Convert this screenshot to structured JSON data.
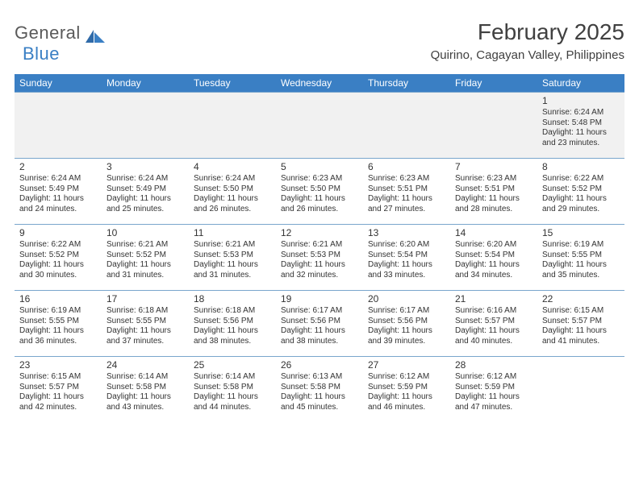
{
  "logo": {
    "text_general": "General",
    "text_blue": "Blue"
  },
  "title": "February 2025",
  "subtitle": "Quirino, Cagayan Valley, Philippines",
  "colors": {
    "header_bg": "#3a7fc4",
    "header_text": "#ffffff",
    "row_border": "#7aa6cc",
    "blank_row_bg": "#f1f1f1",
    "body_text": "#333333",
    "title_text": "#404040",
    "logo_gray": "#5a5a5a",
    "logo_blue": "#3a7fc4"
  },
  "day_names": [
    "Sunday",
    "Monday",
    "Tuesday",
    "Wednesday",
    "Thursday",
    "Friday",
    "Saturday"
  ],
  "weeks": [
    [
      null,
      null,
      null,
      null,
      null,
      null,
      {
        "n": "1",
        "sunrise": "6:24 AM",
        "sunset": "5:48 PM",
        "dl1": "11 hours",
        "dl2": "and 23 minutes."
      }
    ],
    [
      {
        "n": "2",
        "sunrise": "6:24 AM",
        "sunset": "5:49 PM",
        "dl1": "11 hours",
        "dl2": "and 24 minutes."
      },
      {
        "n": "3",
        "sunrise": "6:24 AM",
        "sunset": "5:49 PM",
        "dl1": "11 hours",
        "dl2": "and 25 minutes."
      },
      {
        "n": "4",
        "sunrise": "6:24 AM",
        "sunset": "5:50 PM",
        "dl1": "11 hours",
        "dl2": "and 26 minutes."
      },
      {
        "n": "5",
        "sunrise": "6:23 AM",
        "sunset": "5:50 PM",
        "dl1": "11 hours",
        "dl2": "and 26 minutes."
      },
      {
        "n": "6",
        "sunrise": "6:23 AM",
        "sunset": "5:51 PM",
        "dl1": "11 hours",
        "dl2": "and 27 minutes."
      },
      {
        "n": "7",
        "sunrise": "6:23 AM",
        "sunset": "5:51 PM",
        "dl1": "11 hours",
        "dl2": "and 28 minutes."
      },
      {
        "n": "8",
        "sunrise": "6:22 AM",
        "sunset": "5:52 PM",
        "dl1": "11 hours",
        "dl2": "and 29 minutes."
      }
    ],
    [
      {
        "n": "9",
        "sunrise": "6:22 AM",
        "sunset": "5:52 PM",
        "dl1": "11 hours",
        "dl2": "and 30 minutes."
      },
      {
        "n": "10",
        "sunrise": "6:21 AM",
        "sunset": "5:52 PM",
        "dl1": "11 hours",
        "dl2": "and 31 minutes."
      },
      {
        "n": "11",
        "sunrise": "6:21 AM",
        "sunset": "5:53 PM",
        "dl1": "11 hours",
        "dl2": "and 31 minutes."
      },
      {
        "n": "12",
        "sunrise": "6:21 AM",
        "sunset": "5:53 PM",
        "dl1": "11 hours",
        "dl2": "and 32 minutes."
      },
      {
        "n": "13",
        "sunrise": "6:20 AM",
        "sunset": "5:54 PM",
        "dl1": "11 hours",
        "dl2": "and 33 minutes."
      },
      {
        "n": "14",
        "sunrise": "6:20 AM",
        "sunset": "5:54 PM",
        "dl1": "11 hours",
        "dl2": "and 34 minutes."
      },
      {
        "n": "15",
        "sunrise": "6:19 AM",
        "sunset": "5:55 PM",
        "dl1": "11 hours",
        "dl2": "and 35 minutes."
      }
    ],
    [
      {
        "n": "16",
        "sunrise": "6:19 AM",
        "sunset": "5:55 PM",
        "dl1": "11 hours",
        "dl2": "and 36 minutes."
      },
      {
        "n": "17",
        "sunrise": "6:18 AM",
        "sunset": "5:55 PM",
        "dl1": "11 hours",
        "dl2": "and 37 minutes."
      },
      {
        "n": "18",
        "sunrise": "6:18 AM",
        "sunset": "5:56 PM",
        "dl1": "11 hours",
        "dl2": "and 38 minutes."
      },
      {
        "n": "19",
        "sunrise": "6:17 AM",
        "sunset": "5:56 PM",
        "dl1": "11 hours",
        "dl2": "and 38 minutes."
      },
      {
        "n": "20",
        "sunrise": "6:17 AM",
        "sunset": "5:56 PM",
        "dl1": "11 hours",
        "dl2": "and 39 minutes."
      },
      {
        "n": "21",
        "sunrise": "6:16 AM",
        "sunset": "5:57 PM",
        "dl1": "11 hours",
        "dl2": "and 40 minutes."
      },
      {
        "n": "22",
        "sunrise": "6:15 AM",
        "sunset": "5:57 PM",
        "dl1": "11 hours",
        "dl2": "and 41 minutes."
      }
    ],
    [
      {
        "n": "23",
        "sunrise": "6:15 AM",
        "sunset": "5:57 PM",
        "dl1": "11 hours",
        "dl2": "and 42 minutes."
      },
      {
        "n": "24",
        "sunrise": "6:14 AM",
        "sunset": "5:58 PM",
        "dl1": "11 hours",
        "dl2": "and 43 minutes."
      },
      {
        "n": "25",
        "sunrise": "6:14 AM",
        "sunset": "5:58 PM",
        "dl1": "11 hours",
        "dl2": "and 44 minutes."
      },
      {
        "n": "26",
        "sunrise": "6:13 AM",
        "sunset": "5:58 PM",
        "dl1": "11 hours",
        "dl2": "and 45 minutes."
      },
      {
        "n": "27",
        "sunrise": "6:12 AM",
        "sunset": "5:59 PM",
        "dl1": "11 hours",
        "dl2": "and 46 minutes."
      },
      {
        "n": "28",
        "sunrise": "6:12 AM",
        "sunset": "5:59 PM",
        "dl1": "11 hours",
        "dl2": "and 47 minutes."
      },
      null
    ]
  ],
  "labels": {
    "sunrise": "Sunrise:",
    "sunset": "Sunset:",
    "daylight": "Daylight:"
  }
}
